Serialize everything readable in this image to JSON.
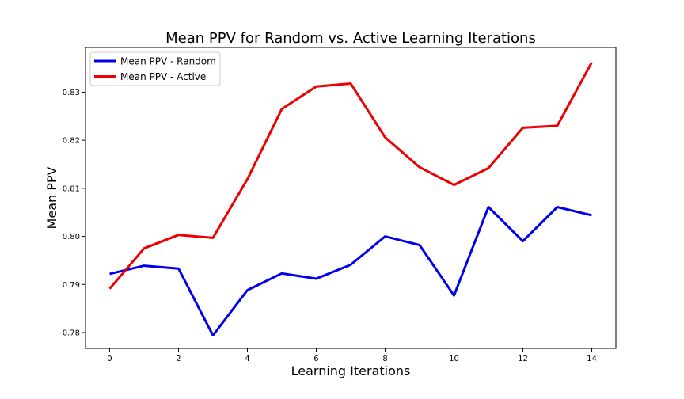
{
  "chart_data": {
    "type": "line",
    "title": "Mean PPV for Random vs. Active Learning Iterations",
    "xlabel": "Learning Iterations",
    "ylabel": "Mean PPV",
    "x": [
      0,
      1,
      2,
      3,
      4,
      5,
      6,
      7,
      8,
      9,
      10,
      11,
      12,
      13,
      14
    ],
    "xlim": [
      -0.7,
      14.7
    ],
    "ylim": [
      0.7767,
      0.8393
    ],
    "xticks": [
      0,
      2,
      4,
      6,
      8,
      10,
      12,
      14
    ],
    "yticks": [
      0.78,
      0.79,
      0.8,
      0.81,
      0.82,
      0.83
    ],
    "ytick_labels": [
      "0.78",
      "0.79",
      "0.80",
      "0.81",
      "0.82",
      "0.83"
    ],
    "series": [
      {
        "name": "Mean PPV - Random",
        "color": "#0000ee",
        "values": [
          0.7922,
          0.7939,
          0.7933,
          0.7794,
          0.7888,
          0.7923,
          0.7912,
          0.7941,
          0.8,
          0.7982,
          0.7877,
          0.8061,
          0.799,
          0.8061,
          0.8044
        ]
      },
      {
        "name": "Mean PPV - Active",
        "color": "#ee0000",
        "values": [
          0.7891,
          0.7975,
          0.8003,
          0.7997,
          0.8119,
          0.8265,
          0.8312,
          0.8318,
          0.8206,
          0.8144,
          0.8107,
          0.8142,
          0.8226,
          0.823,
          0.8362
        ]
      }
    ],
    "legend_position": "upper-left",
    "grid": false
  }
}
